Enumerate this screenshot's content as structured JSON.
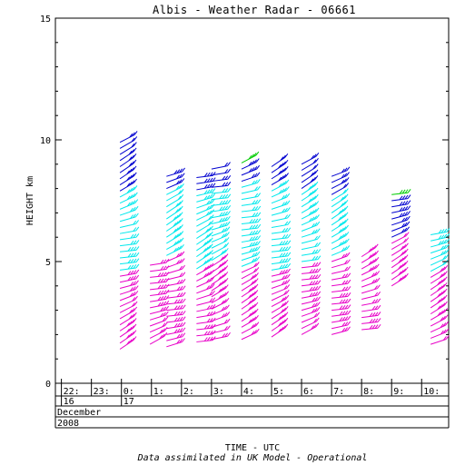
{
  "chart_data": {
    "type": "scatter",
    "title": "Albis - Weather Radar - 06661",
    "ylabel": "HEIGHT km",
    "xlabel": "TIME - UTC",
    "footnote": "Data assimilated in UK Model - Operational",
    "ylim": [
      0,
      15
    ],
    "yticks": [
      "0",
      "5",
      "10",
      "15"
    ],
    "xlim": [
      -2.2,
      10.9
    ],
    "time_ticks": [
      {
        "h": -2,
        "label": "22:"
      },
      {
        "h": -1,
        "label": "23:"
      },
      {
        "h": 0,
        "label": "0:"
      },
      {
        "h": 1,
        "label": "1:"
      },
      {
        "h": 2,
        "label": "2:"
      },
      {
        "h": 3,
        "label": "3:"
      },
      {
        "h": 4,
        "label": "4:"
      },
      {
        "h": 5,
        "label": "5:"
      },
      {
        "h": 6,
        "label": "6:"
      },
      {
        "h": 7,
        "label": "7:"
      },
      {
        "h": 8,
        "label": "8:"
      },
      {
        "h": 9,
        "label": "9:"
      },
      {
        "h": 10,
        "label": "10:"
      }
    ],
    "day_labels": [
      {
        "h": -2,
        "label": "16"
      },
      {
        "h": 0,
        "label": "17"
      }
    ],
    "month": "December",
    "year": "2008",
    "colors": {
      "high": "#0000d0",
      "mid": "#00e8ec",
      "low": "#e800c8",
      "top": "#00cc00"
    },
    "profiles": [
      {
        "t": -0.05,
        "bottom": 1.4,
        "top": 10.0,
        "segments": [
          {
            "from": 1.4,
            "to": 4.6,
            "color": "low"
          },
          {
            "from": 4.6,
            "to": 7.7,
            "color": "mid"
          },
          {
            "from": 7.7,
            "to": 10.0,
            "color": "high"
          }
        ]
      },
      {
        "t": 0.95,
        "bottom": 1.6,
        "top": 5.0,
        "segments": [
          {
            "from": 1.6,
            "to": 5.0,
            "color": "low"
          }
        ]
      },
      {
        "t": 1.5,
        "bottom": 1.5,
        "top": 8.5,
        "segments": [
          {
            "from": 1.5,
            "to": 5.0,
            "color": "low"
          },
          {
            "from": 5.0,
            "to": 7.8,
            "color": "mid"
          },
          {
            "from": 7.8,
            "to": 8.5,
            "color": "high"
          }
        ]
      },
      {
        "t": 2.5,
        "bottom": 1.7,
        "top": 8.6,
        "segments": [
          {
            "from": 1.7,
            "to": 4.6,
            "color": "low"
          },
          {
            "from": 4.6,
            "to": 7.8,
            "color": "mid"
          },
          {
            "from": 7.8,
            "to": 8.6,
            "color": "high"
          }
        ]
      },
      {
        "t": 3.0,
        "bottom": 1.8,
        "top": 9.0,
        "segments": [
          {
            "from": 1.8,
            "to": 4.8,
            "color": "low"
          },
          {
            "from": 4.8,
            "to": 8.0,
            "color": "mid"
          },
          {
            "from": 8.0,
            "to": 9.0,
            "color": "high"
          }
        ]
      },
      {
        "t": 4.0,
        "bottom": 1.8,
        "top": 9.2,
        "segments": [
          {
            "from": 1.8,
            "to": 4.7,
            "color": "low"
          },
          {
            "from": 4.7,
            "to": 8.2,
            "color": "mid"
          },
          {
            "from": 8.2,
            "to": 9.0,
            "color": "high"
          },
          {
            "from": 9.0,
            "to": 9.2,
            "color": "top"
          }
        ]
      },
      {
        "t": 5.0,
        "bottom": 1.9,
        "top": 9.1,
        "segments": [
          {
            "from": 1.9,
            "to": 4.5,
            "color": "low"
          },
          {
            "from": 4.5,
            "to": 8.0,
            "color": "mid"
          },
          {
            "from": 8.0,
            "to": 9.1,
            "color": "high"
          }
        ]
      },
      {
        "t": 6.0,
        "bottom": 2.0,
        "top": 9.0,
        "segments": [
          {
            "from": 2.0,
            "to": 4.8,
            "color": "low"
          },
          {
            "from": 4.8,
            "to": 7.8,
            "color": "mid"
          },
          {
            "from": 7.8,
            "to": 9.0,
            "color": "high"
          }
        ]
      },
      {
        "t": 7.0,
        "bottom": 2.0,
        "top": 8.5,
        "segments": [
          {
            "from": 2.0,
            "to": 5.0,
            "color": "low"
          },
          {
            "from": 5.0,
            "to": 7.5,
            "color": "mid"
          },
          {
            "from": 7.5,
            "to": 8.5,
            "color": "high"
          }
        ]
      },
      {
        "t": 8.0,
        "bottom": 2.2,
        "top": 5.3,
        "segments": [
          {
            "from": 2.2,
            "to": 5.3,
            "color": "low"
          }
        ]
      },
      {
        "t": 9.0,
        "bottom": 4.0,
        "top": 7.8,
        "segments": [
          {
            "from": 4.0,
            "to": 5.8,
            "color": "low"
          },
          {
            "from": 5.8,
            "to": 7.5,
            "color": "high"
          },
          {
            "from": 7.5,
            "to": 7.8,
            "color": "top"
          }
        ]
      },
      {
        "t": 10.3,
        "bottom": 1.6,
        "top": 6.2,
        "segments": [
          {
            "from": 1.6,
            "to": 4.5,
            "color": "low"
          },
          {
            "from": 4.5,
            "to": 6.2,
            "color": "mid"
          }
        ]
      }
    ]
  }
}
